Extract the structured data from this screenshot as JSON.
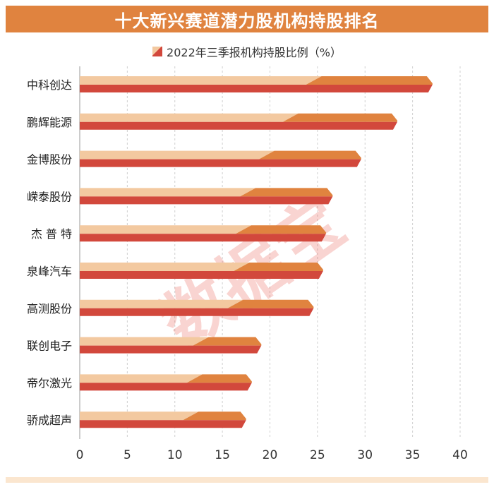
{
  "title": "十大新兴赛道潜力股机构持股排名",
  "watermark": "数据宝",
  "chart_data": {
    "type": "bar",
    "orientation": "horizontal",
    "categories": [
      "中科创达",
      "鹏辉能源",
      "金博股份",
      "嵘泰股份",
      "杰 普 特",
      "泉峰汽车",
      "高测股份",
      "联创电子",
      "帝尔激光",
      "骄成超声"
    ],
    "series": [
      {
        "name": "2022年三季报机构持股比例（%）",
        "values": [
          36.5,
          32.8,
          29.0,
          26.0,
          25.3,
          25.0,
          24.0,
          18.5,
          17.5,
          16.9
        ]
      }
    ],
    "xlim": [
      0,
      40
    ],
    "xticks": [
      0,
      5,
      10,
      15,
      20,
      25,
      30,
      35,
      40
    ],
    "grid": "vertical-dashed",
    "legend": "top-center",
    "colors": {
      "light": "#f3c9a0",
      "mid": "#e0833f",
      "dark": "#d2483c",
      "title_bg": "#e0833f"
    }
  }
}
